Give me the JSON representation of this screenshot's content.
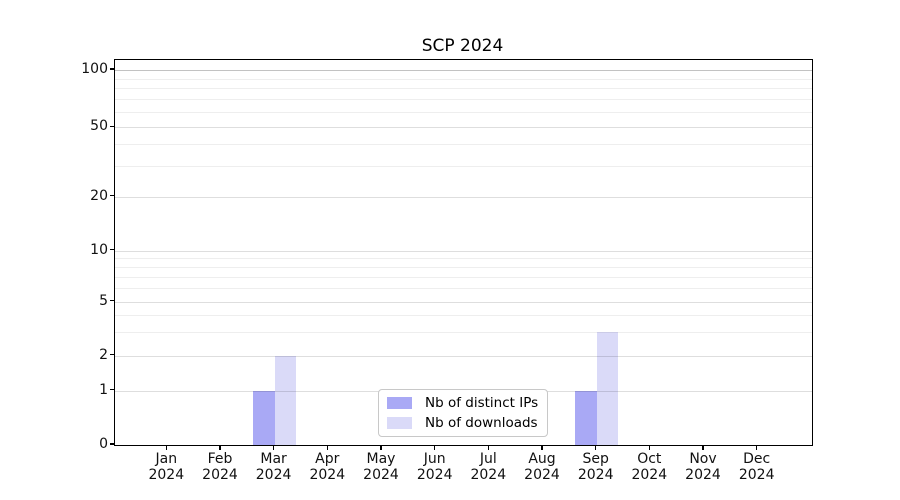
{
  "title": "SCP 2024",
  "chart_data": {
    "type": "bar",
    "title": "SCP 2024",
    "categories": [
      "Jan 2024",
      "Feb 2024",
      "Mar 2024",
      "Apr 2024",
      "May 2024",
      "Jun 2024",
      "Jul 2024",
      "Aug 2024",
      "Sep 2024",
      "Oct 2024",
      "Nov 2024",
      "Dec 2024"
    ],
    "series": [
      {
        "name": "Nb of distinct IPs",
        "color": "#a9a9f5",
        "values": [
          0,
          0,
          1,
          0,
          0,
          0,
          0,
          0,
          1,
          0,
          0,
          0
        ]
      },
      {
        "name": "Nb of downloads",
        "color": "#dadaf8",
        "values": [
          0,
          0,
          2,
          0,
          0,
          0,
          0,
          0,
          3,
          0,
          0,
          0
        ]
      }
    ],
    "xlabel": "",
    "ylabel": "",
    "yscale": "symlog",
    "y_ticks": [
      0,
      1,
      2,
      5,
      10,
      20,
      50,
      100
    ],
    "ylim": [
      0,
      115
    ],
    "grid": true,
    "legend_position": "lower center"
  },
  "colors": {
    "background": "#ffffff",
    "spine": "#000000",
    "bar_distinct_ips": "#a9a9f5",
    "bar_downloads": "#dadaf8",
    "legend_border": "#c8c8c8"
  }
}
